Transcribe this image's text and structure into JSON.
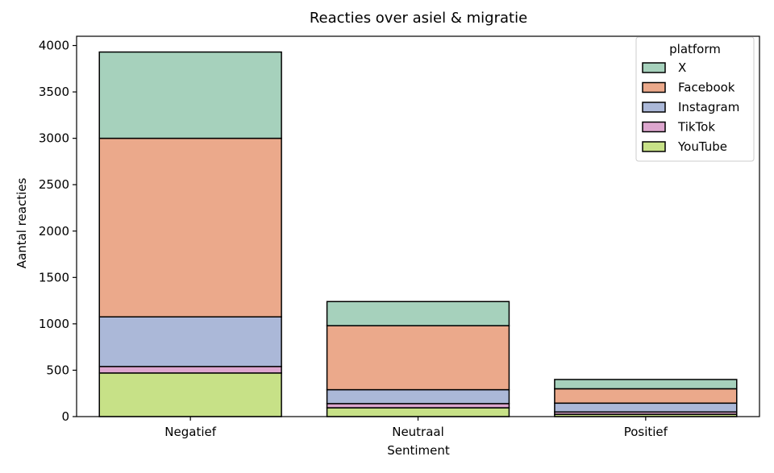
{
  "chart_data": {
    "type": "bar",
    "stacked": true,
    "title": "Reacties over asiel & migratie",
    "xlabel": "Sentiment",
    "ylabel": "Aantal reacties",
    "categories": [
      "Negatief",
      "Neutraal",
      "Positief"
    ],
    "ylim": [
      0,
      4100
    ],
    "yticks": [
      0,
      500,
      1000,
      1500,
      2000,
      2500,
      3000,
      3500,
      4000
    ],
    "grid": false,
    "legend": {
      "title": "platform",
      "placement": "top-right"
    },
    "series": [
      {
        "name": "YouTube",
        "color": "#c7e187",
        "values": [
          470,
          95,
          25
        ]
      },
      {
        "name": "TikTok",
        "color": "#dda6ce",
        "values": [
          70,
          45,
          25
        ]
      },
      {
        "name": "Instagram",
        "color": "#abb8d8",
        "values": [
          535,
          150,
          95
        ]
      },
      {
        "name": "Facebook",
        "color": "#eba98b",
        "values": [
          1925,
          690,
          155
        ]
      },
      {
        "name": "X",
        "color": "#a6d1bc",
        "values": [
          930,
          260,
          100
        ]
      }
    ],
    "legend_order": [
      "X",
      "Facebook",
      "Instagram",
      "TikTok",
      "YouTube"
    ]
  }
}
